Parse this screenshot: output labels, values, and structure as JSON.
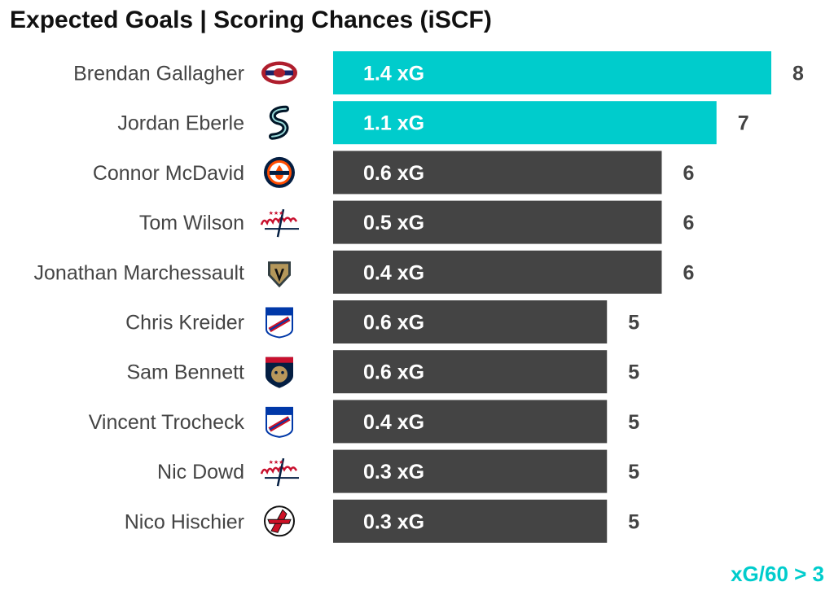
{
  "title": "Expected Goals | Scoring Chances (iSCF)",
  "footnote": "xG/60 > 3",
  "colors": {
    "highlight": "#00CCCC",
    "default": "#444444"
  },
  "chart_data": {
    "type": "bar",
    "orientation": "horizontal",
    "title": "Expected Goals | Scoring Chances (iSCF)",
    "categories": [
      "Brendan Gallagher",
      "Jordan Eberle",
      "Connor McDavid",
      "Tom Wilson",
      "Jonathan Marchessault",
      "Chris Kreider",
      "Sam Bennett",
      "Vincent Trocheck",
      "Nic Dowd",
      "Nico Hischier"
    ],
    "teams": [
      "canadiens",
      "kraken",
      "oilers",
      "capitals",
      "golden-knights",
      "rangers",
      "panthers",
      "rangers",
      "capitals",
      "devils"
    ],
    "values": [
      8,
      7,
      6,
      6,
      6,
      5,
      5,
      5,
      5,
      5
    ],
    "bar_labels": [
      "1.4 xG",
      "1.1 xG",
      "0.6 xG",
      "0.5 xG",
      "0.4 xG",
      "0.6 xG",
      "0.6 xG",
      "0.4 xG",
      "0.3 xG",
      "0.3 xG"
    ],
    "xg": [
      1.4,
      1.1,
      0.6,
      0.5,
      0.4,
      0.6,
      0.6,
      0.4,
      0.3,
      0.3
    ],
    "highlighted": [
      true,
      true,
      false,
      false,
      false,
      false,
      false,
      false,
      false,
      false
    ],
    "xlim": [
      0,
      8
    ],
    "grid": false,
    "legend": "none"
  }
}
